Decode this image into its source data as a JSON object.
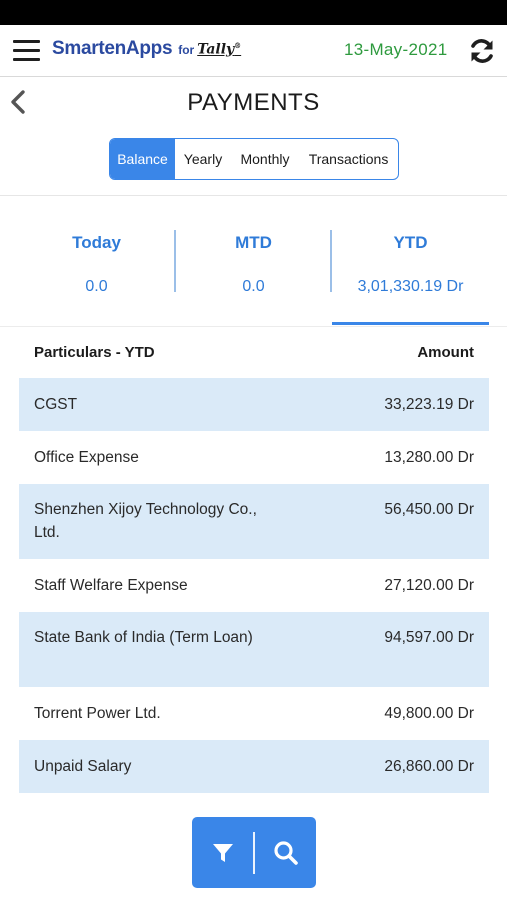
{
  "header": {
    "brand_name": "SmartenApps",
    "brand_for": "for",
    "brand_tally": "Tally",
    "brand_tally_mark": "®",
    "date": "13-May-2021",
    "icons": {
      "menu": "hamburger-menu-icon",
      "refresh": "refresh-icon"
    }
  },
  "page": {
    "title": "PAYMENTS",
    "back_icon": "chevron-left-icon"
  },
  "tabs": [
    {
      "label": "Balance",
      "active": true
    },
    {
      "label": "Yearly",
      "active": false
    },
    {
      "label": "Monthly",
      "active": false
    },
    {
      "label": "Transactions",
      "active": false
    }
  ],
  "summary": [
    {
      "label": "Today",
      "value": "0.0",
      "selected": false
    },
    {
      "label": "MTD",
      "value": "0.0",
      "selected": false
    },
    {
      "label": "YTD",
      "value": "3,01,330.19 Dr",
      "selected": true
    }
  ],
  "table": {
    "headers": {
      "particulars": "Particulars - YTD",
      "amount": "Amount"
    },
    "rows": [
      {
        "name": "CGST",
        "amount": "33,223.19 Dr"
      },
      {
        "name": "Office Expense",
        "amount": "13,280.00 Dr"
      },
      {
        "name": "Shenzhen Xijoy Technology Co., Ltd.",
        "amount": "56,450.00 Dr"
      },
      {
        "name": "Staff Welfare Expense",
        "amount": "27,120.00 Dr"
      },
      {
        "name": "State Bank of India (Term Loan)",
        "amount": "94,597.00 Dr"
      },
      {
        "name": "Torrent Power Ltd.",
        "amount": "49,800.00 Dr"
      },
      {
        "name": "Unpaid Salary",
        "amount": "26,860.00 Dr"
      }
    ]
  },
  "fab": {
    "filter_icon": "filter-icon",
    "search_icon": "search-icon"
  },
  "colors": {
    "accent": "#3a86e8",
    "date_green": "#2e9a3e",
    "brand_blue": "#2b4aa0",
    "row_alt": "#daeaf8"
  }
}
